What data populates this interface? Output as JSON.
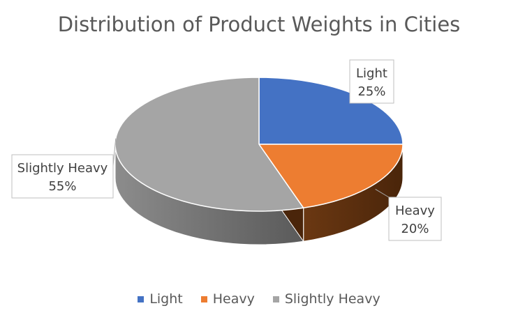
{
  "chart_data": {
    "type": "pie",
    "title": "Distribution of Product Weights in Cities",
    "categories": [
      "Light",
      "Heavy",
      "Slightly Heavy"
    ],
    "values": [
      25,
      20,
      55
    ],
    "labels": [
      "25%",
      "20%",
      "55%"
    ],
    "colors": [
      "#4472C4",
      "#ED7D31",
      "#A5A5A5"
    ],
    "legend_position": "bottom",
    "style": "3d-pie with callout labels"
  }
}
